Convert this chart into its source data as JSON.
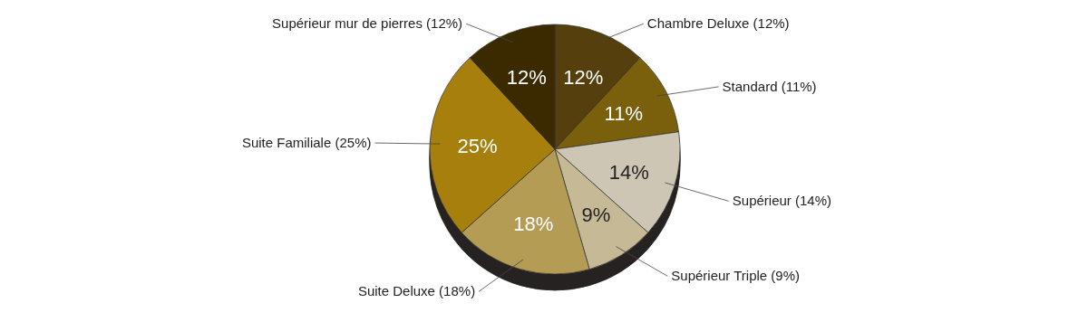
{
  "chart_data": {
    "type": "pie",
    "categories": [
      "Chambre Deluxe (12%)",
      "Standard (11%)",
      "Supérieur (14%)",
      "Supérieur Triple (9%)",
      "Suite Deluxe (18%)",
      "Suite Familiale (25%)",
      "Supérieur mur de pierres (12%)"
    ],
    "values": [
      12,
      11,
      14,
      9,
      18,
      25,
      12
    ],
    "value_labels": [
      "12%",
      "11%",
      "14%",
      "9%",
      "18%",
      "25%",
      "12%"
    ],
    "colors": [
      "#54410a",
      "#7a5f0c",
      "#cec6b4",
      "#c6b995",
      "#b59c54",
      "#a77f10",
      "#3a2c04"
    ]
  }
}
